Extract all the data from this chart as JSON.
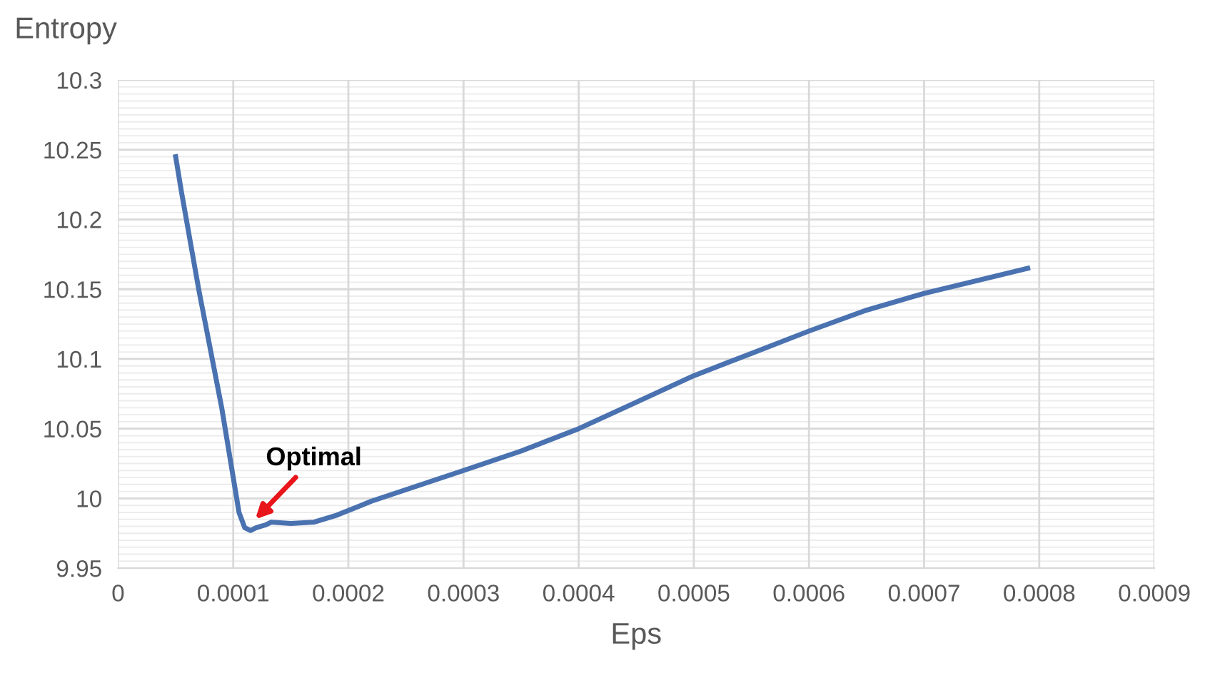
{
  "chart_data": {
    "type": "line",
    "xlabel": "Eps",
    "ylabel": "Entropy",
    "x": [
      5e-05,
      5.5e-05,
      7e-05,
      9e-05,
      0.000105,
      0.00011,
      0.000115,
      0.00012,
      0.000128,
      0.000133,
      0.00015,
      0.00017,
      0.00019,
      0.00022,
      0.00026,
      0.0003,
      0.00035,
      0.0004,
      0.00045,
      0.0005,
      0.00055,
      0.0006,
      0.00065,
      0.0007,
      0.00075,
      0.00079
    ],
    "series": [
      {
        "color": "#4a72b0",
        "values": [
          10.245,
          10.22,
          10.15,
          10.065,
          9.99,
          9.979,
          9.977,
          9.979,
          9.981,
          9.983,
          9.982,
          9.983,
          9.988,
          9.998,
          10.009,
          10.02,
          10.034,
          10.05,
          10.069,
          10.088,
          10.104,
          10.12,
          10.135,
          10.147,
          10.157,
          10.165
        ]
      }
    ],
    "xlim": [
      0,
      0.0009
    ],
    "xticks": [
      0,
      0.0001,
      0.0002,
      0.0003,
      0.0004,
      0.0005,
      0.0006,
      0.0007,
      0.0008,
      0.0009
    ],
    "ylim": [
      9.95,
      10.3
    ],
    "yticks": [
      9.95,
      10,
      10.05,
      10.1,
      10.15,
      10.2,
      10.25,
      10.3
    ],
    "grid": true,
    "marker": "none",
    "line_style": "solid",
    "annotations": [
      {
        "text": "Optimal",
        "x": 0.000118,
        "y": 9.984
      }
    ]
  }
}
